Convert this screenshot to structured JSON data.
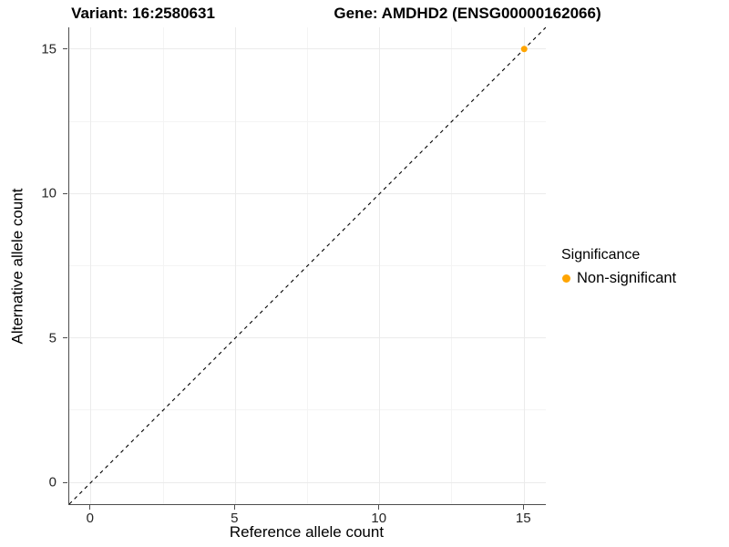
{
  "chart_data": {
    "type": "scatter",
    "title_left": "Variant: 16:2580631",
    "title_right": "Gene: AMDHD2 (ENSG00000162066)",
    "xlabel": "Reference allele count",
    "ylabel": "Alternative allele count",
    "xlim": [
      -0.75,
      15.75
    ],
    "ylim": [
      -0.75,
      15.75
    ],
    "x_ticks": [
      0,
      5,
      10,
      15
    ],
    "y_ticks": [
      0,
      5,
      10,
      15
    ],
    "x_minor_ticks": [
      2.5,
      7.5,
      12.5
    ],
    "y_minor_ticks": [
      2.5,
      7.5,
      12.5
    ],
    "grid": true,
    "points": [
      {
        "x": 15,
        "y": 15,
        "series": "Non-significant"
      }
    ],
    "identity_line": {
      "style": "dashed",
      "color": "#000000",
      "slope": 1,
      "intercept": 0
    },
    "legend": {
      "title": "Significance",
      "position": "right",
      "entries": [
        {
          "label": "Non-significant",
          "color": "#FFA500"
        }
      ]
    },
    "colors": {
      "grid_major": "#EBEBEB",
      "grid_minor": "#F4F4F4",
      "axis_line": "#4d4d4d",
      "point": "#FFA500"
    }
  }
}
